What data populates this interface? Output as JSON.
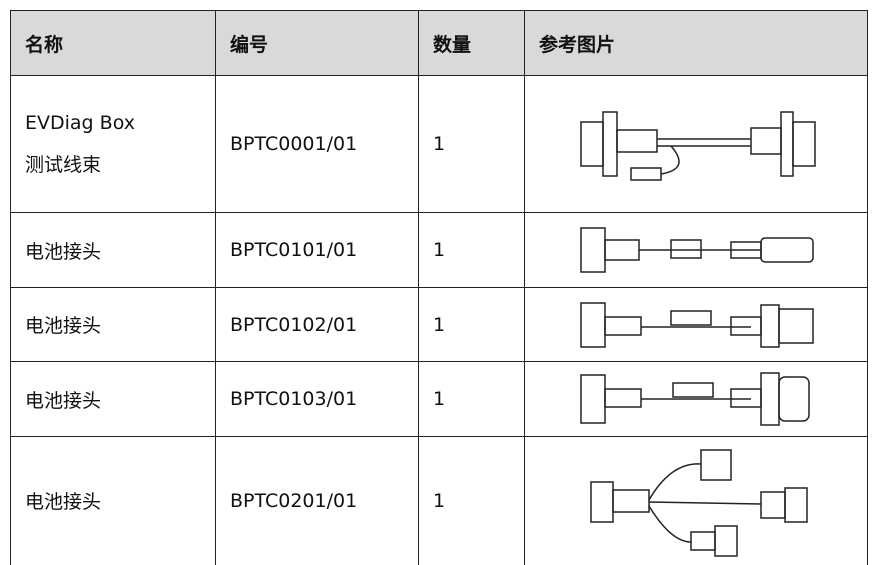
{
  "table": {
    "header": [
      "名称",
      "编号",
      "数量",
      "参考图片"
    ],
    "rows": [
      [
        [
          "EVDiag Box",
          "测试线束"
        ],
        "BPTC0001/01",
        "1"
      ],
      [
        "电池接头",
        "BPTC0101/01",
        "1"
      ],
      [
        "电池接头",
        "BPTC0102/01",
        "1"
      ],
      [
        "电池接头",
        "BPTC0103/01",
        "1"
      ],
      [
        "电池接头",
        "BPTC0201/01",
        "1"
      ]
    ]
  }
}
